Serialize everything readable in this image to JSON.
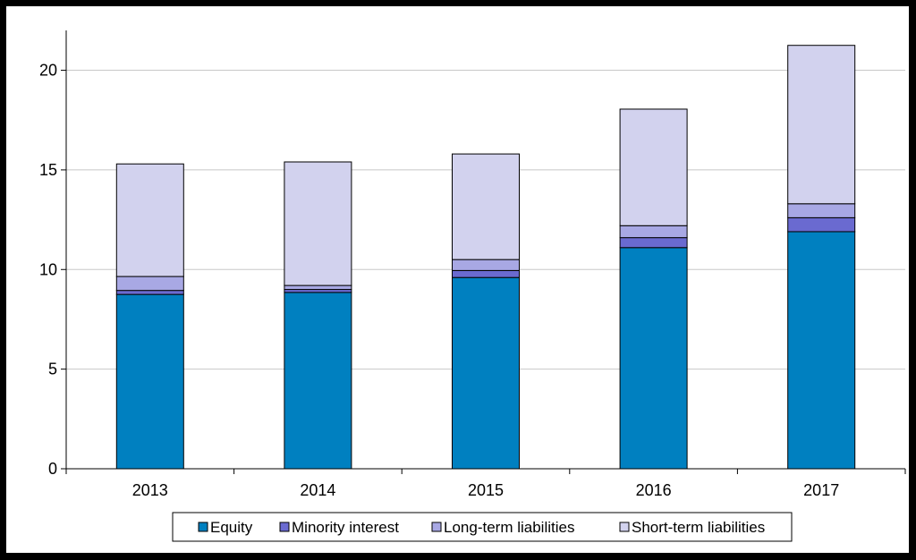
{
  "chart_data": {
    "type": "bar",
    "stacked": true,
    "title": "",
    "xlabel": "",
    "ylabel": "",
    "categories": [
      "2013",
      "2014",
      "2015",
      "2016",
      "2017"
    ],
    "ylim": [
      0,
      22
    ],
    "yticks": [
      0,
      5,
      10,
      15,
      20
    ],
    "grid": true,
    "legend_position": "bottom",
    "series": [
      {
        "name": "Equity",
        "color": "#0080C0",
        "values": [
          8.75,
          8.85,
          9.6,
          11.1,
          11.9
        ]
      },
      {
        "name": "Minority interest",
        "color": "#6A6AD0",
        "values": [
          0.2,
          0.15,
          0.35,
          0.5,
          0.7
        ]
      },
      {
        "name": "Long-term liabilities",
        "color": "#A8A8E4",
        "values": [
          0.7,
          0.2,
          0.55,
          0.6,
          0.7
        ]
      },
      {
        "name": "Short-term liabilities",
        "color": "#D2D2EE",
        "values": [
          5.65,
          6.2,
          5.3,
          5.85,
          7.95
        ]
      }
    ]
  }
}
